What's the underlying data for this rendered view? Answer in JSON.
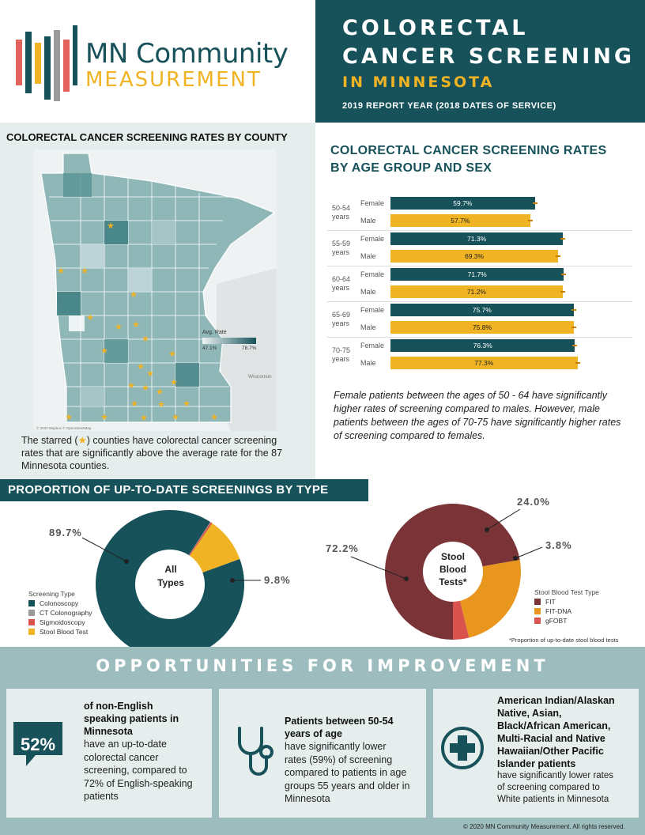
{
  "logo": {
    "line1": "MN Community",
    "line2": "MEASUREMENT"
  },
  "header": {
    "title_line1": "COLORECTAL",
    "title_line2": "CANCER SCREENING",
    "subtitle": "IN MINNESOTA",
    "report_year": "2019 REPORT YEAR (2018 DATES OF SERVICE)"
  },
  "map_panel": {
    "title": "COLORECTAL  CANCER SCREENING RATES BY COUNTY",
    "legend_title": "Avg. Rate",
    "legend_min": "47.1%",
    "legend_max": "78.7%",
    "credit": "© 2020 Mapbox © OpenStreetMap",
    "wisconsin": "Wisconsin",
    "note_before": "The starred (",
    "note_star": "★",
    "note_after": ") counties have colorectal cancer screening rates that are significantly above the average rate for the 87 Minnesota counties."
  },
  "age_chart": {
    "title_line1": "COLORECTAL CANCER SCREENING RATES",
    "title_line2": "BY AGE GROUP AND SEX",
    "colors": {
      "female": "#17525a",
      "male": "#f0b323"
    }
  },
  "chart_data": {
    "type": "bar",
    "orientation": "horizontal",
    "categories": [
      "50-54 years",
      "55-59 years",
      "60-64 years",
      "65-69 years",
      "70-75 years"
    ],
    "series": [
      {
        "name": "Female",
        "values": [
          59.7,
          71.3,
          71.7,
          75.7,
          76.3
        ],
        "labels": [
          "59.7%",
          "71.3%",
          "71.7%",
          "75.7%",
          "76.3%"
        ]
      },
      {
        "name": "Male",
        "values": [
          57.7,
          69.3,
          71.2,
          75.8,
          77.3
        ],
        "labels": [
          "57.7%",
          "69.3%",
          "71.2%",
          "75.8%",
          "77.3%"
        ]
      }
    ],
    "xlim": [
      0,
      100
    ]
  },
  "age_note": "Female patients between the ages of 50 - 64 have significantly higher rates of screening compared to males. However, male patients between the ages of 70-75 have significantly higher rates of screening compared to females.",
  "proportion": {
    "title": "PROPORTION OF UP-TO-DATE SCREENINGS BY TYPE",
    "donut1": {
      "center_line1": "All",
      "center_line2": "Types",
      "label_major": "89.7%",
      "label_minor": "9.8%",
      "legend_title": "Screening Type",
      "segments": [
        {
          "name": "Colonoscopy",
          "value": 89.7,
          "color": "#17525a"
        },
        {
          "name": "CT Colonography",
          "value": 0.1,
          "color": "#9a9a9a"
        },
        {
          "name": "Sigmoidoscopy",
          "value": 0.4,
          "color": "#d9534f"
        },
        {
          "name": "Stool Blood Test",
          "value": 9.8,
          "color": "#f0b323"
        }
      ]
    },
    "donut2": {
      "center_line1": "Stool",
      "center_line2": "Blood",
      "center_line3": "Tests*",
      "label_fit": "72.2%",
      "label_fitdna": "24.0%",
      "label_gfobt": "3.8%",
      "legend_title": "Stool Blood Test Type",
      "segments": [
        {
          "name": "FIT",
          "value": 72.2,
          "color": "#7a3336"
        },
        {
          "name": "FIT-DNA",
          "value": 24.0,
          "color": "#e8961e"
        },
        {
          "name": "gFOBT",
          "value": 3.8,
          "color": "#d9534f"
        }
      ],
      "footnote": "*Proportion of up-to-date stool blood tests"
    }
  },
  "opportunities": {
    "title": "OPPORTUNITIES FOR IMPROVEMENT",
    "card1": {
      "badge": "52%",
      "bold1": "of non-English",
      "bold2": "speaking patients in",
      "bold3": "Minnesota",
      "text1": "have an up-to-date",
      "text2": "colorectal cancer",
      "text3": "screening, compared to",
      "text4": "72% of English-speaking",
      "text5": "patients"
    },
    "card2": {
      "bold1": "Patients between 50-54",
      "bold2": "years of age",
      "text1": "have significantly lower",
      "text2": "rates (59%) of screening",
      "text3": "compared to patients in age",
      "text4": "groups 55 years and older in",
      "text5": "Minnesota"
    },
    "card3": {
      "bold1": "American Indian/Alaskan",
      "bold2": "Native, Asian,",
      "bold3": "Black/African American,",
      "bold4": "Multi-Racial and Native",
      "bold5": "Hawaiian/Other Pacific",
      "bold6": "Islander patients",
      "text1": "have significantly  lower rates",
      "text2": "of screening  compared to",
      "text3": "White patients  in Minnesota"
    }
  },
  "copyright": "© 2020  MN Community  Measurement.  All rights reserved."
}
